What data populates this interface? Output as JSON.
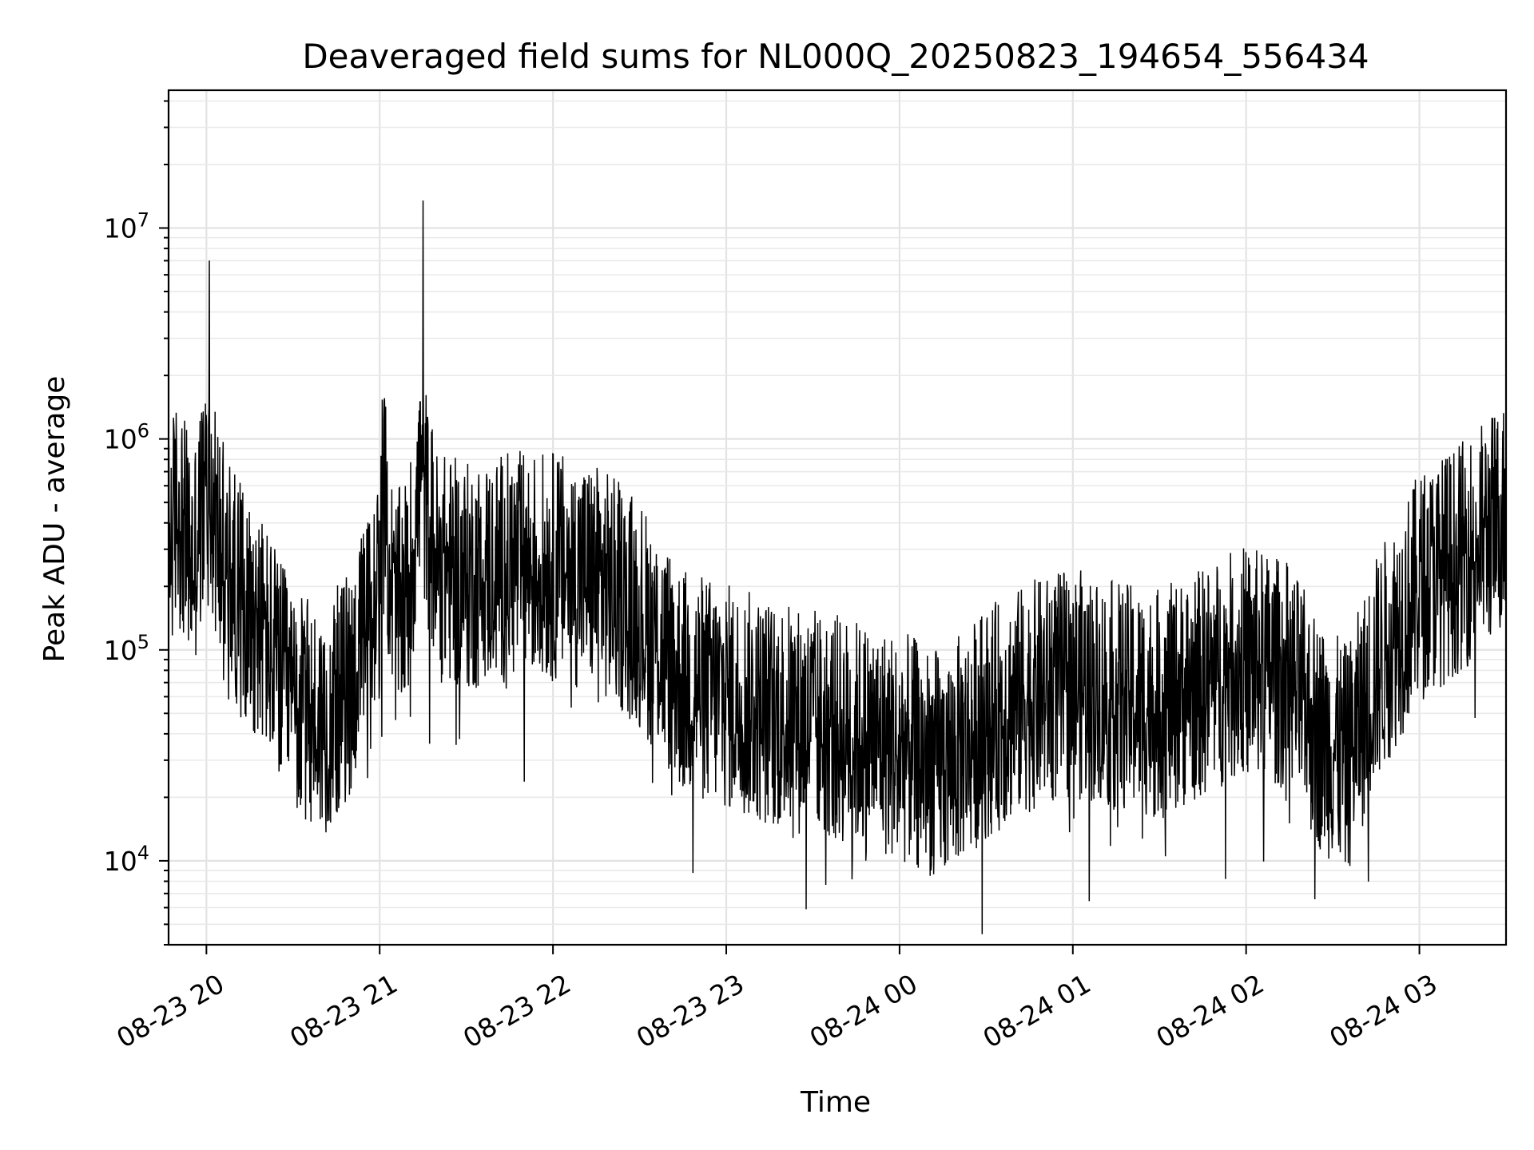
{
  "chart_data": {
    "type": "line",
    "title": "Deaveraged field sums for NL000Q_20250823_194654_556434",
    "xlabel": "Time",
    "ylabel": "Peak ADU - average",
    "yscale": "log",
    "ylim": [
      4000,
      45000000
    ],
    "xlim": [
      "2025-08-23 19:46:54",
      "2025-08-24 03:30:00"
    ],
    "grid": true,
    "line_color": "#000000",
    "x_ticks": [
      "08-23 20",
      "08-23 21",
      "08-23 22",
      "08-23 23",
      "08-24 00",
      "08-24 01",
      "08-24 02",
      "08-24 03"
    ],
    "y_ticks": [
      {
        "value": 10000,
        "base": "10",
        "exp": "4"
      },
      {
        "value": 100000,
        "base": "10",
        "exp": "5"
      },
      {
        "value": 1000000,
        "base": "10",
        "exp": "6"
      },
      {
        "value": 10000000,
        "base": "10",
        "exp": "7"
      }
    ],
    "series": [
      {
        "x": [
          "2025-08-23 19:47",
          "2025-08-23 19:50",
          "2025-08-23 19:55",
          "2025-08-23 20:00",
          "2025-08-23 20:01",
          "2025-08-23 20:05",
          "2025-08-23 20:10",
          "2025-08-23 20:20",
          "2025-08-23 20:30",
          "2025-08-23 20:40",
          "2025-08-23 20:50",
          "2025-08-23 21:00",
          "2025-08-23 21:01",
          "2025-08-23 21:05",
          "2025-08-23 21:10",
          "2025-08-23 21:14",
          "2025-08-23 21:15",
          "2025-08-23 21:20",
          "2025-08-23 21:30",
          "2025-08-23 21:45",
          "2025-08-23 22:00",
          "2025-08-23 22:15",
          "2025-08-23 22:30",
          "2025-08-23 22:45",
          "2025-08-23 23:00",
          "2025-08-23 23:15",
          "2025-08-23 23:30",
          "2025-08-23 23:45",
          "2025-08-24 00:00",
          "2025-08-24 00:15",
          "2025-08-24 00:30",
          "2025-08-24 00:45",
          "2025-08-24 01:00",
          "2025-08-24 01:15",
          "2025-08-24 01:30",
          "2025-08-24 01:45",
          "2025-08-24 02:00",
          "2025-08-24 02:15",
          "2025-08-24 02:25",
          "2025-08-24 02:35",
          "2025-08-24 02:45",
          "2025-08-24 03:00",
          "2025-08-24 03:15",
          "2025-08-24 03:30"
        ],
        "y": [
          300000,
          500000,
          250000,
          900000,
          7000000,
          300000,
          200000,
          120000,
          55000,
          45000,
          70000,
          200000,
          1250000,
          150000,
          200000,
          1500000,
          13500000,
          250000,
          220000,
          250000,
          250000,
          220000,
          150000,
          70000,
          60000,
          50000,
          45000,
          40000,
          35000,
          28000,
          45000,
          60000,
          70000,
          60000,
          55000,
          70000,
          90000,
          75000,
          40000,
          30000,
          80000,
          200000,
          280000,
          450000
        ]
      }
    ]
  }
}
